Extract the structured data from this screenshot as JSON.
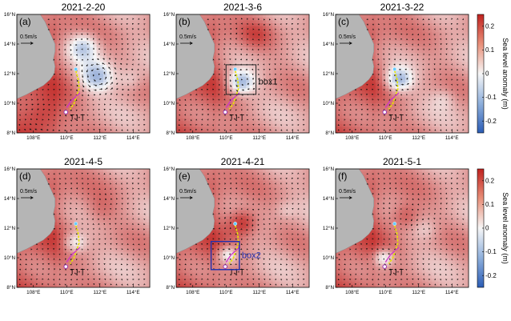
{
  "chart_data": {
    "type": "heatmap",
    "variable": "Sea level anomaly (m)",
    "colorbar": {
      "label": "Sea level anomaly (m)",
      "range": [
        -0.25,
        0.25
      ],
      "ticks": [
        -0.2,
        -0.1,
        0,
        0.1,
        0.2
      ],
      "tick_labels": [
        "-0.2",
        "-0.1",
        "0",
        "0.1",
        "0.2"
      ],
      "low_color": "#2b5db6",
      "mid_color": "#f7f7f7",
      "high_color": "#c0221f"
    },
    "axes": {
      "lon_range": [
        107,
        115
      ],
      "lat_range": [
        8,
        16
      ],
      "lon_ticks": [
        108,
        110,
        112,
        114
      ],
      "lat_ticks": [
        8,
        10,
        12,
        14,
        16
      ],
      "lon_tick_labels": [
        "108°E",
        "110°E",
        "112°E",
        "114°E"
      ],
      "lat_tick_labels": [
        "8°N",
        "10°N",
        "12°N",
        "14°N",
        "16°N"
      ]
    },
    "vector_scale_label": "0.5m/s",
    "track_label": "TJ-T",
    "track_colors": {
      "ship_track": "#e6e600",
      "trajectory": "#cc33cc",
      "marker": "#9b30b0"
    },
    "panels": [
      {
        "label": "(a)",
        "date": "2021-2-20",
        "eddies": [
          {
            "lon": 111.0,
            "lat": 13.8,
            "amp": -0.18,
            "r": 0.9
          },
          {
            "lon": 111.8,
            "lat": 11.8,
            "amp": -0.2,
            "r": 1.0
          },
          {
            "lon": 113.8,
            "lat": 11.6,
            "amp": -0.08,
            "r": 0.8
          },
          {
            "lon": 108.5,
            "lat": 9.2,
            "amp": 0.08,
            "r": 1.2
          }
        ]
      },
      {
        "label": "(b)",
        "date": "2021-3-6",
        "box": {
          "name": "box1",
          "lon": [
            110.0,
            111.8
          ],
          "lat": [
            10.6,
            12.6
          ]
        },
        "eddies": [
          {
            "lon": 110.9,
            "lat": 11.4,
            "amp": -0.22,
            "r": 0.8
          },
          {
            "lon": 111.8,
            "lat": 14.6,
            "amp": 0.06,
            "r": 1.0
          }
        ]
      },
      {
        "label": "(c)",
        "date": "2021-3-22",
        "eddies": [
          {
            "lon": 110.8,
            "lat": 11.6,
            "amp": -0.22,
            "r": 0.8
          },
          {
            "lon": 113.5,
            "lat": 10.3,
            "amp": -0.05,
            "r": 0.7
          }
        ]
      },
      {
        "label": "(d)",
        "date": "2021-4-5",
        "eddies": [
          {
            "lon": 110.5,
            "lat": 11.0,
            "amp": -0.14,
            "r": 0.7
          },
          {
            "lon": 112.0,
            "lat": 13.2,
            "amp": 0.05,
            "r": 1.0
          }
        ]
      },
      {
        "label": "(e)",
        "date": "2021-4-21",
        "box": {
          "name": "box2",
          "lon": [
            109.1,
            110.8
          ],
          "lat": [
            9.2,
            11.1
          ]
        },
        "eddies": [
          {
            "lon": 110.1,
            "lat": 10.2,
            "amp": -0.16,
            "r": 0.6
          },
          {
            "lon": 111.0,
            "lat": 12.4,
            "amp": 0.14,
            "r": 0.9
          },
          {
            "lon": 113.6,
            "lat": 13.2,
            "amp": -0.04,
            "r": 0.6
          }
        ]
      },
      {
        "label": "(f)",
        "date": "2021-5-1",
        "eddies": [
          {
            "lon": 109.9,
            "lat": 10.0,
            "amp": -0.16,
            "r": 0.6
          },
          {
            "lon": 112.4,
            "lat": 11.9,
            "amp": -0.05,
            "r": 0.7
          },
          {
            "lon": 111.2,
            "lat": 12.8,
            "amp": 0.1,
            "r": 0.9
          }
        ]
      }
    ],
    "base_field": {
      "background_amp": 0.1,
      "coast_amp": 0.15
    }
  }
}
